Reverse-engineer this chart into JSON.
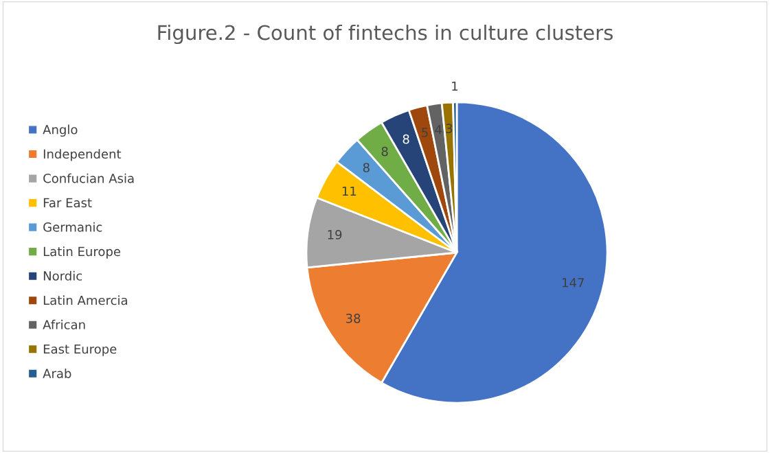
{
  "chart_data": {
    "type": "pie",
    "title": "Figure.2 - Count of fintechs in culture clusters",
    "categories": [
      "Anglo",
      "Independent",
      "Confucian Asia",
      "Far East",
      "Germanic",
      "Latin Europe",
      "Nordic",
      "Latin Amercia",
      "African",
      "East Europe",
      "Arab"
    ],
    "values": [
      147,
      38,
      19,
      11,
      8,
      8,
      8,
      5,
      4,
      3,
      1
    ],
    "colors": [
      "#4472c4",
      "#ed7d31",
      "#a5a5a5",
      "#ffc000",
      "#5b9bd5",
      "#70ad47",
      "#264478",
      "#9e480e",
      "#636363",
      "#997300",
      "#255e91"
    ],
    "data_labels": true,
    "legend": "left"
  }
}
